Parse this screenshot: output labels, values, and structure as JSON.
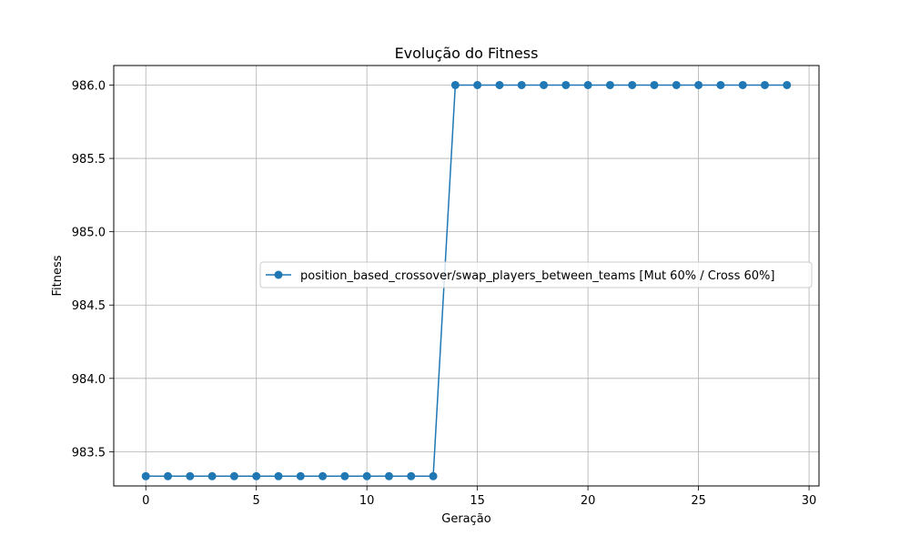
{
  "chart_data": {
    "type": "line",
    "title": "Evolução do Fitness",
    "xlabel": "Geração",
    "ylabel": "Fitness",
    "xlim": [
      -1.45,
      30.45
    ],
    "ylim": [
      983.2667,
      986.1333
    ],
    "xticks": [
      0,
      5,
      10,
      15,
      20,
      25,
      30
    ],
    "yticks": [
      983.5,
      984.0,
      984.5,
      985.0,
      985.5,
      986.0
    ],
    "xtick_labels": [
      "0",
      "5",
      "10",
      "15",
      "20",
      "25",
      "30"
    ],
    "ytick_labels": [
      "983.5",
      "984.0",
      "984.5",
      "985.0",
      "985.5",
      "986.0"
    ],
    "grid": true,
    "legend_position": "center-right",
    "series": [
      {
        "name": "position_based_crossover/swap_players_between_teams [Mut 60% / Cross 60%]",
        "color": "#1f77b4",
        "marker": "circle",
        "x": [
          0,
          1,
          2,
          3,
          4,
          5,
          6,
          7,
          8,
          9,
          10,
          11,
          12,
          13,
          14,
          15,
          16,
          17,
          18,
          19,
          20,
          21,
          22,
          23,
          24,
          25,
          26,
          27,
          28,
          29
        ],
        "values": [
          983.3333,
          983.3333,
          983.3333,
          983.3333,
          983.3333,
          983.3333,
          983.3333,
          983.3333,
          983.3333,
          983.3333,
          983.3333,
          983.3333,
          983.3333,
          983.3333,
          986.0,
          986.0,
          986.0,
          986.0,
          986.0,
          986.0,
          986.0,
          986.0,
          986.0,
          986.0,
          986.0,
          986.0,
          986.0,
          986.0,
          986.0,
          986.0
        ]
      }
    ]
  }
}
